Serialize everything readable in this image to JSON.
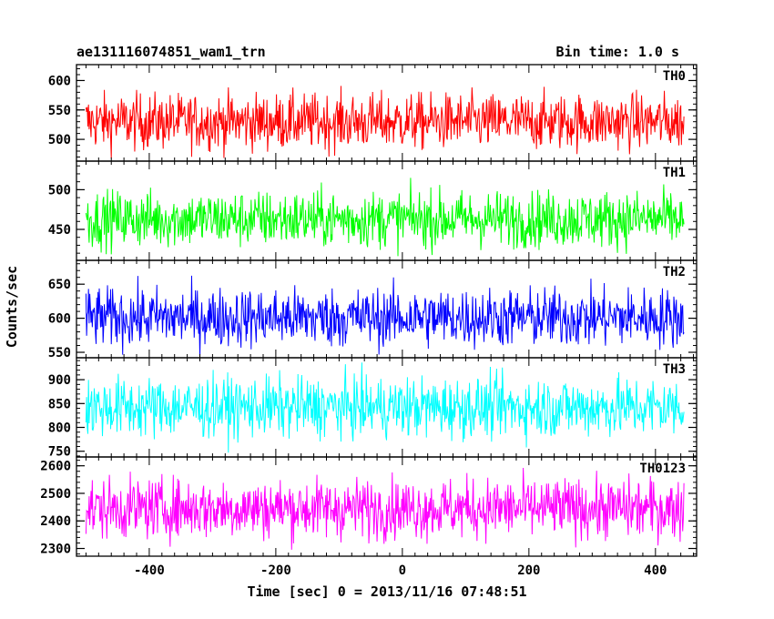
{
  "header": {
    "left": "ae131116074851_wam1_trn",
    "right": "Bin time: 1.0 s"
  },
  "axes": {
    "xlabel": "Time [sec] 0 = 2013/11/16 07:48:51",
    "ylabel": "Counts/sec"
  },
  "chart_data": {
    "type": "line",
    "title": "ae131116074851_wam1_trn",
    "subtitle": "Bin time: 1.0 s",
    "xlabel": "Time [sec] 0 = 2013/11/16 07:48:51",
    "ylabel": "Counts/sec",
    "xlim": [
      -515,
      465
    ],
    "xticks": [
      -400,
      -200,
      0,
      200,
      400
    ],
    "x_range": [
      -500,
      445
    ],
    "bin_time_s": 1.0,
    "grid": false,
    "legend": "none",
    "panels": [
      {
        "name": "TH0",
        "color": "#ff0000",
        "ylim": [
          463,
          627
        ],
        "yticks": [
          500,
          550,
          600
        ],
        "mean": 530,
        "spread": 24,
        "lo": 463,
        "hi": 627
      },
      {
        "name": "TH1",
        "color": "#00ff00",
        "ylim": [
          411,
          536
        ],
        "yticks": [
          450,
          500
        ],
        "mean": 463,
        "spread": 18,
        "lo": 411,
        "hi": 536
      },
      {
        "name": "TH2",
        "color": "#0000ff",
        "ylim": [
          542,
          685
        ],
        "yticks": [
          550,
          600,
          650
        ],
        "mean": 601,
        "spread": 22,
        "lo": 542,
        "hi": 685
      },
      {
        "name": "TH3",
        "color": "#00ffff",
        "ylim": [
          738,
          946
        ],
        "yticks": [
          750,
          800,
          850,
          900
        ],
        "mean": 842,
        "spread": 32,
        "lo": 745,
        "hi": 946
      },
      {
        "name": "TH0123",
        "color": "#ff00ff",
        "ylim": [
          2272,
          2632
        ],
        "yticks": [
          2300,
          2400,
          2500,
          2600
        ],
        "mean": 2445,
        "spread": 55,
        "lo": 2272,
        "hi": 2632
      }
    ]
  }
}
